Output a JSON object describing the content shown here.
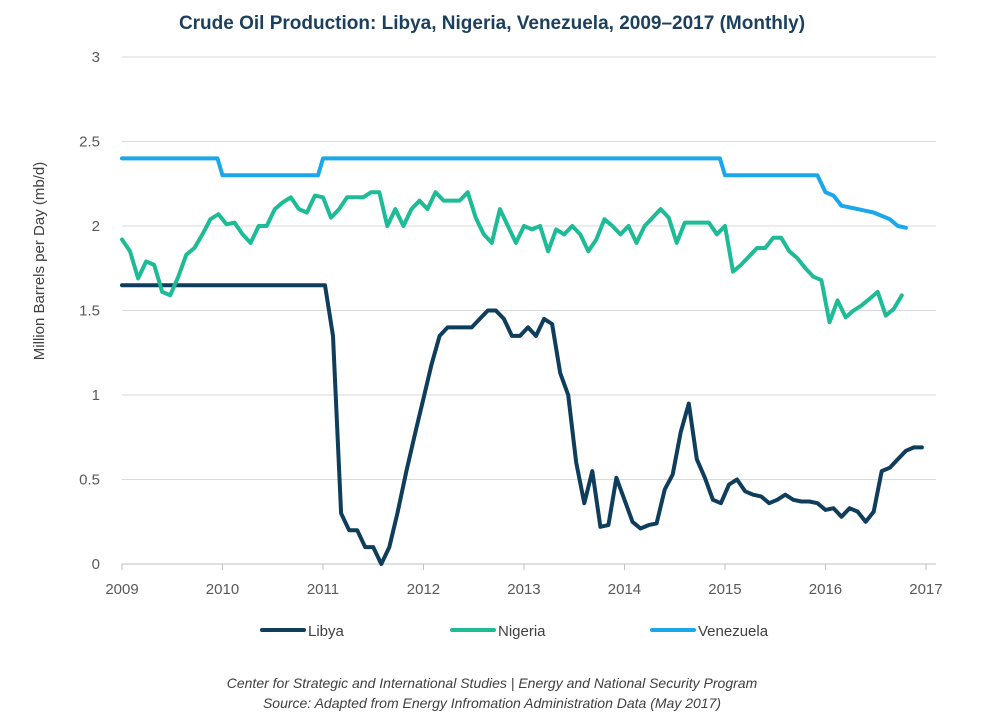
{
  "chart_data": {
    "type": "line",
    "title": "Crude Oil Production: Libya, Nigeria, Venezuela, 2009–2017 (Monthly)",
    "xlabel": "",
    "ylabel": "Million Barrels per Day (mb/d)",
    "xlim": [
      2009,
      2017.1
    ],
    "ylim": [
      0,
      3
    ],
    "x_ticks": [
      2009,
      2010,
      2011,
      2012,
      2013,
      2014,
      2015,
      2016,
      2017
    ],
    "x_tick_labels": [
      "2009",
      "2010",
      "2011",
      "2012",
      "2013",
      "2014",
      "2015",
      "2016",
      "2017"
    ],
    "y_ticks": [
      0,
      0.5,
      1,
      1.5,
      2,
      2.5,
      3
    ],
    "y_tick_labels": [
      "0",
      "0.5",
      "1",
      "1.5",
      "2",
      "2.5",
      "3"
    ],
    "grid": true,
    "legend_position": "bottom",
    "series": [
      {
        "name": "Libya",
        "color": "#0f3d5c",
        "points": [
          [
            2009,
            1.65
          ],
          [
            2010,
            1.65
          ],
          [
            2010.5,
            1.65
          ],
          [
            2011.02,
            1.65
          ],
          [
            2011.1,
            1.35
          ],
          [
            2011.18,
            0.3
          ],
          [
            2011.26,
            0.2
          ],
          [
            2011.34,
            0.2
          ],
          [
            2011.42,
            0.1
          ],
          [
            2011.5,
            0.1
          ],
          [
            2011.58,
            0.0
          ],
          [
            2011.66,
            0.1
          ],
          [
            2011.74,
            0.3
          ],
          [
            2011.83,
            0.55
          ],
          [
            2011.92,
            0.78
          ],
          [
            2012.0,
            0.98
          ],
          [
            2012.08,
            1.18
          ],
          [
            2012.16,
            1.35
          ],
          [
            2012.24,
            1.4
          ],
          [
            2012.32,
            1.4
          ],
          [
            2012.4,
            1.4
          ],
          [
            2012.48,
            1.4
          ],
          [
            2012.56,
            1.45
          ],
          [
            2012.64,
            1.5
          ],
          [
            2012.72,
            1.5
          ],
          [
            2012.8,
            1.45
          ],
          [
            2012.88,
            1.35
          ],
          [
            2012.96,
            1.35
          ],
          [
            2013.04,
            1.4
          ],
          [
            2013.12,
            1.35
          ],
          [
            2013.2,
            1.45
          ],
          [
            2013.28,
            1.42
          ],
          [
            2013.36,
            1.13
          ],
          [
            2013.44,
            1.0
          ],
          [
            2013.52,
            0.6
          ],
          [
            2013.6,
            0.36
          ],
          [
            2013.68,
            0.55
          ],
          [
            2013.76,
            0.22
          ],
          [
            2013.84,
            0.23
          ],
          [
            2013.92,
            0.51
          ],
          [
            2014.0,
            0.38
          ],
          [
            2014.08,
            0.25
          ],
          [
            2014.16,
            0.21
          ],
          [
            2014.24,
            0.23
          ],
          [
            2014.32,
            0.24
          ],
          [
            2014.4,
            0.44
          ],
          [
            2014.48,
            0.53
          ],
          [
            2014.56,
            0.78
          ],
          [
            2014.64,
            0.95
          ],
          [
            2014.72,
            0.62
          ],
          [
            2014.8,
            0.51
          ],
          [
            2014.88,
            0.38
          ],
          [
            2014.96,
            0.36
          ],
          [
            2015.04,
            0.47
          ],
          [
            2015.12,
            0.5
          ],
          [
            2015.2,
            0.43
          ],
          [
            2015.28,
            0.41
          ],
          [
            2015.36,
            0.4
          ],
          [
            2015.44,
            0.36
          ],
          [
            2015.52,
            0.38
          ],
          [
            2015.6,
            0.41
          ],
          [
            2015.68,
            0.38
          ],
          [
            2015.76,
            0.37
          ],
          [
            2015.84,
            0.37
          ],
          [
            2015.92,
            0.36
          ],
          [
            2016.0,
            0.32
          ],
          [
            2016.08,
            0.33
          ],
          [
            2016.16,
            0.28
          ],
          [
            2016.24,
            0.33
          ],
          [
            2016.32,
            0.31
          ],
          [
            2016.4,
            0.25
          ],
          [
            2016.48,
            0.31
          ],
          [
            2016.56,
            0.55
          ],
          [
            2016.64,
            0.57
          ],
          [
            2016.72,
            0.62
          ],
          [
            2016.8,
            0.67
          ],
          [
            2016.88,
            0.69
          ],
          [
            2016.96,
            0.69
          ]
        ]
      },
      {
        "name": "Nigeria",
        "color": "#1dbb96",
        "points": [
          [
            2009.0,
            1.92
          ],
          [
            2009.08,
            1.85
          ],
          [
            2009.16,
            1.69
          ],
          [
            2009.24,
            1.79
          ],
          [
            2009.32,
            1.77
          ],
          [
            2009.4,
            1.61
          ],
          [
            2009.48,
            1.59
          ],
          [
            2009.56,
            1.7
          ],
          [
            2009.64,
            1.83
          ],
          [
            2009.72,
            1.87
          ],
          [
            2009.8,
            1.95
          ],
          [
            2009.88,
            2.04
          ],
          [
            2009.96,
            2.07
          ],
          [
            2010.04,
            2.01
          ],
          [
            2010.12,
            2.02
          ],
          [
            2010.2,
            1.95
          ],
          [
            2010.28,
            1.9
          ],
          [
            2010.36,
            2.0
          ],
          [
            2010.44,
            2.0
          ],
          [
            2010.52,
            2.1
          ],
          [
            2010.6,
            2.14
          ],
          [
            2010.68,
            2.17
          ],
          [
            2010.76,
            2.1
          ],
          [
            2010.84,
            2.08
          ],
          [
            2010.92,
            2.18
          ],
          [
            2011.0,
            2.17
          ],
          [
            2011.08,
            2.05
          ],
          [
            2011.16,
            2.1
          ],
          [
            2011.24,
            2.17
          ],
          [
            2011.32,
            2.17
          ],
          [
            2011.4,
            2.17
          ],
          [
            2011.48,
            2.2
          ],
          [
            2011.56,
            2.2
          ],
          [
            2011.64,
            2.0
          ],
          [
            2011.72,
            2.1
          ],
          [
            2011.8,
            2.0
          ],
          [
            2011.88,
            2.1
          ],
          [
            2011.96,
            2.15
          ],
          [
            2012.04,
            2.1
          ],
          [
            2012.12,
            2.2
          ],
          [
            2012.2,
            2.15
          ],
          [
            2012.28,
            2.15
          ],
          [
            2012.36,
            2.15
          ],
          [
            2012.44,
            2.2
          ],
          [
            2012.52,
            2.05
          ],
          [
            2012.6,
            1.95
          ],
          [
            2012.68,
            1.9
          ],
          [
            2012.76,
            2.1
          ],
          [
            2012.84,
            2.0
          ],
          [
            2012.92,
            1.9
          ],
          [
            2013.0,
            2.0
          ],
          [
            2013.08,
            1.98
          ],
          [
            2013.16,
            2.0
          ],
          [
            2013.24,
            1.85
          ],
          [
            2013.32,
            1.98
          ],
          [
            2013.4,
            1.95
          ],
          [
            2013.48,
            2.0
          ],
          [
            2013.56,
            1.95
          ],
          [
            2013.64,
            1.85
          ],
          [
            2013.72,
            1.92
          ],
          [
            2013.8,
            2.04
          ],
          [
            2013.88,
            2.0
          ],
          [
            2013.96,
            1.95
          ],
          [
            2014.04,
            2.0
          ],
          [
            2014.12,
            1.9
          ],
          [
            2014.2,
            2.0
          ],
          [
            2014.28,
            2.05
          ],
          [
            2014.36,
            2.1
          ],
          [
            2014.44,
            2.05
          ],
          [
            2014.52,
            1.9
          ],
          [
            2014.6,
            2.02
          ],
          [
            2014.68,
            2.02
          ],
          [
            2014.76,
            2.02
          ],
          [
            2014.84,
            2.02
          ],
          [
            2014.92,
            1.95
          ],
          [
            2015.0,
            2.0
          ],
          [
            2015.08,
            1.73
          ],
          [
            2015.16,
            1.77
          ],
          [
            2015.24,
            1.82
          ],
          [
            2015.32,
            1.87
          ],
          [
            2015.4,
            1.87
          ],
          [
            2015.48,
            1.93
          ],
          [
            2015.56,
            1.93
          ],
          [
            2015.64,
            1.85
          ],
          [
            2015.72,
            1.81
          ],
          [
            2015.8,
            1.75
          ],
          [
            2015.88,
            1.7
          ],
          [
            2015.96,
            1.68
          ],
          [
            2016.04,
            1.43
          ],
          [
            2016.12,
            1.56
          ],
          [
            2016.2,
            1.46
          ],
          [
            2016.28,
            1.5
          ],
          [
            2016.36,
            1.53
          ],
          [
            2016.44,
            1.57
          ],
          [
            2016.52,
            1.61
          ],
          [
            2016.6,
            1.47
          ],
          [
            2016.68,
            1.51
          ],
          [
            2016.76,
            1.59
          ]
        ]
      },
      {
        "name": "Venezuela",
        "color": "#1aa7ec",
        "points": [
          [
            2009.0,
            2.4
          ],
          [
            2009.95,
            2.4
          ],
          [
            2010.0,
            2.3
          ],
          [
            2010.95,
            2.3
          ],
          [
            2011.0,
            2.4
          ],
          [
            2014.95,
            2.4
          ],
          [
            2015.0,
            2.3
          ],
          [
            2015.92,
            2.3
          ],
          [
            2016.0,
            2.2
          ],
          [
            2016.08,
            2.18
          ],
          [
            2016.16,
            2.12
          ],
          [
            2016.24,
            2.11
          ],
          [
            2016.32,
            2.1
          ],
          [
            2016.4,
            2.09
          ],
          [
            2016.48,
            2.08
          ],
          [
            2016.56,
            2.06
          ],
          [
            2016.64,
            2.04
          ],
          [
            2016.72,
            2.0
          ],
          [
            2016.8,
            1.99
          ]
        ]
      }
    ]
  },
  "footer": {
    "line1": "Center for Strategic and International Studies | Energy and National Security Program",
    "line2": "Source: Adapted from Energy Infromation Administration Data (May 2017)"
  }
}
